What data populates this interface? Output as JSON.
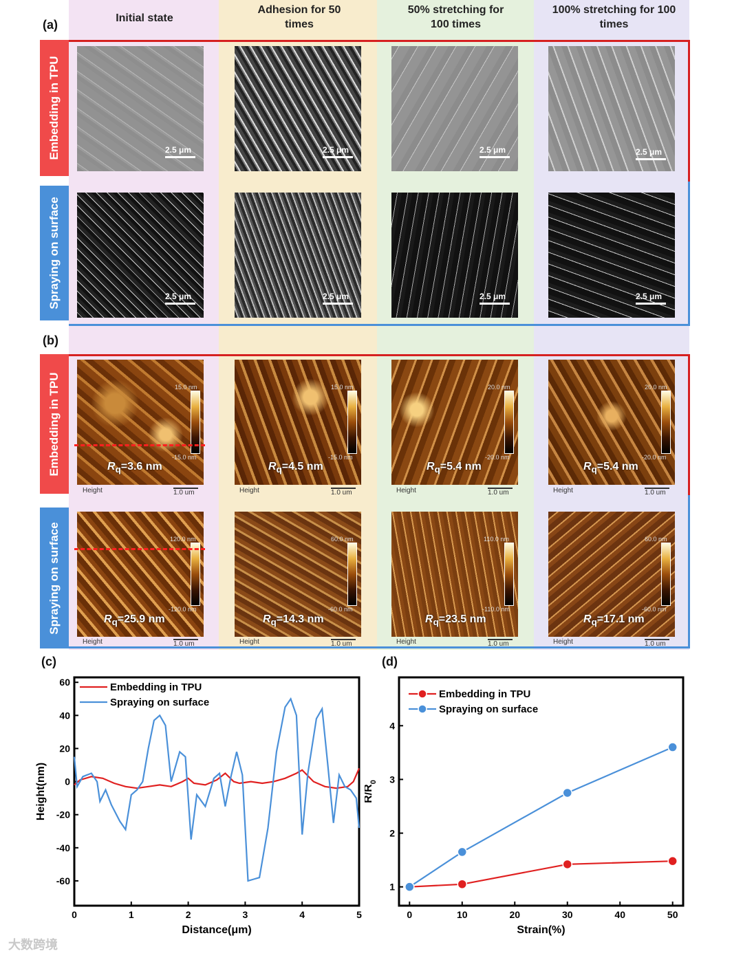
{
  "panel_labels": {
    "a": "(a)",
    "b": "(b)",
    "c": "(c)",
    "d": "(d)"
  },
  "columns": [
    {
      "title": "Initial state",
      "band_color": "#f3e3f3"
    },
    {
      "title": "Adhesion for 50 times",
      "band_color": "#f8eccd"
    },
    {
      "title": "50% stretching for 100 times",
      "band_color": "#e5f1dd"
    },
    {
      "title": "100% stretching for 100 times",
      "band_color": "#e7e4f5"
    }
  ],
  "rows": {
    "embedding": {
      "label": "Embedding in TPU",
      "color": "#f04a4a"
    },
    "spraying": {
      "label": "Spraying on surface",
      "color": "#4a90d9"
    }
  },
  "sem_scale": "2.5 μm",
  "afm": {
    "height_label": "Height",
    "scale_label": "1.0 um",
    "embedding": [
      {
        "rq": "3.6 nm",
        "cbar_top": "15.0 nm",
        "cbar_bottom": "-15.0 nm"
      },
      {
        "rq": "4.5 nm",
        "cbar_top": "15.0 nm",
        "cbar_bottom": "-15.0 nm"
      },
      {
        "rq": "5.4 nm",
        "cbar_top": "20.0 nm",
        "cbar_bottom": "-20.0 nm"
      },
      {
        "rq": "5.4 nm",
        "cbar_top": "20.0 nm",
        "cbar_bottom": "-20.0 nm"
      }
    ],
    "spraying": [
      {
        "rq": "25.9 nm",
        "cbar_top": "120.0 nm",
        "cbar_bottom": "-120.0 nm"
      },
      {
        "rq": "14.3 nm",
        "cbar_top": "60.0 nm",
        "cbar_bottom": "-60.0 nm"
      },
      {
        "rq": "23.5 nm",
        "cbar_top": "110.0 nm",
        "cbar_bottom": "-110.0 nm"
      },
      {
        "rq": "17.1 nm",
        "cbar_top": "60.0 nm",
        "cbar_bottom": "-60.0 nm"
      }
    ]
  },
  "watermark": "大数跨境",
  "chart_data": [
    {
      "type": "line",
      "xlabel": "Distance(μm)",
      "ylabel": "Height(nm)",
      "xlim": [
        0,
        5
      ],
      "ylim": [
        -75,
        63
      ],
      "xticks": [
        0,
        1,
        2,
        3,
        4,
        5
      ],
      "yticks": [
        60,
        40,
        20,
        0,
        -20,
        -40,
        -60
      ],
      "legend_position": "top-left",
      "series": [
        {
          "name": "Embedding in TPU",
          "color": "#e02020",
          "x": [
            0,
            0.1,
            0.3,
            0.5,
            0.7,
            0.9,
            1.1,
            1.3,
            1.5,
            1.7,
            1.9,
            2.0,
            2.1,
            2.3,
            2.5,
            2.65,
            2.8,
            2.9,
            3.1,
            3.3,
            3.5,
            3.7,
            3.9,
            4.0,
            4.2,
            4.4,
            4.6,
            4.8,
            4.9,
            5.0
          ],
          "y": [
            -2,
            1,
            3,
            2,
            -1,
            -3,
            -4,
            -3,
            -2,
            -3,
            0,
            2,
            -1,
            -2,
            1,
            5,
            0,
            -1,
            0,
            -1,
            0,
            2,
            5,
            7,
            0,
            -3,
            -4,
            -3,
            0,
            8
          ]
        },
        {
          "name": "Spraying on surface",
          "color": "#4a90d9",
          "x": [
            0,
            0.05,
            0.15,
            0.3,
            0.4,
            0.45,
            0.55,
            0.65,
            0.8,
            0.9,
            1.0,
            1.1,
            1.2,
            1.3,
            1.4,
            1.5,
            1.6,
            1.7,
            1.85,
            1.95,
            2.05,
            2.15,
            2.3,
            2.45,
            2.55,
            2.65,
            2.75,
            2.85,
            2.95,
            3.05,
            3.15,
            3.25,
            3.4,
            3.55,
            3.7,
            3.8,
            3.9,
            4.0,
            4.1,
            4.25,
            4.35,
            4.45,
            4.55,
            4.65,
            4.75,
            4.85,
            4.95,
            5.0
          ],
          "y": [
            15,
            -3,
            3,
            5,
            0,
            -12,
            -5,
            -14,
            -24,
            -29,
            -8,
            -5,
            0,
            20,
            37,
            40,
            34,
            0,
            18,
            15,
            -35,
            -8,
            -15,
            2,
            5,
            -15,
            3,
            18,
            4,
            -60,
            -59,
            -58,
            -28,
            18,
            45,
            50,
            40,
            -32,
            5,
            38,
            44,
            10,
            -25,
            4,
            -3,
            -5,
            -10,
            -28
          ]
        }
      ]
    },
    {
      "type": "line",
      "xlabel": "Strain(%)",
      "ylabel": "R/R0",
      "xlim": [
        -2,
        52
      ],
      "ylim": [
        0.65,
        4.9
      ],
      "xticks": [
        0,
        10,
        20,
        30,
        40,
        50
      ],
      "yticks": [
        1,
        2,
        3,
        4
      ],
      "legend_position": "top-left",
      "series": [
        {
          "name": "Embedding in TPU",
          "color": "#e02020",
          "x": [
            0,
            10,
            30,
            50
          ],
          "y": [
            1.0,
            1.05,
            1.42,
            1.48
          ]
        },
        {
          "name": "Spraying on surface",
          "color": "#4a90d9",
          "x": [
            0,
            10,
            30,
            50
          ],
          "y": [
            1.0,
            1.65,
            2.75,
            3.6
          ]
        }
      ]
    }
  ]
}
